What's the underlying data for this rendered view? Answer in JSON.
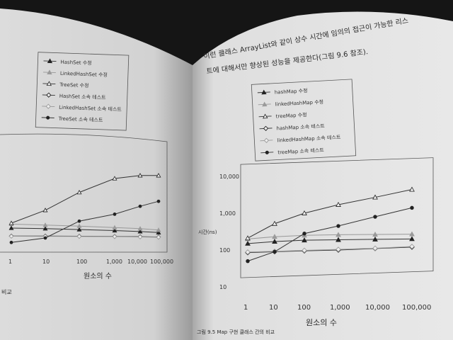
{
  "photo": {
    "subject": "open-book",
    "colors": {
      "background": "#151515",
      "paper_left": "#dcdcdc",
      "paper_right": "#e4e4e4",
      "ink": "#2a2a2a"
    }
  },
  "left_page": {
    "legend": [
      "HashSet 수정",
      "LinkedHashSet 수정",
      "TreeSet 수정",
      "HashSet 소속 테스트",
      "LinkedHashSet 소속 테스트",
      "TreeSet 소속 테스트"
    ],
    "x_ticks": [
      "1",
      "10",
      "100",
      "1,000",
      "10,000",
      "100,000"
    ],
    "x_label": "원소의 수",
    "footer_fragment": "비교"
  },
  "right_page": {
    "body_text": [
      "이런 클래스 ArrayList와 같이 상수 시간에 임의의 접근이 가능한 리스",
      "트에 대해서만 향상된 성능을 제공한다(그림 9.6 참조)."
    ],
    "legend": [
      "hashMap 수정",
      "linkedHashMap 수정",
      "treeMap 수정",
      "hashMap 소속 테스트",
      "linkedHashMap 소속 테스트",
      "treeMap 소속 테스트"
    ],
    "y_ticks": [
      "10,000",
      "1,000",
      "100",
      "10"
    ],
    "y_label": "시간(ns)",
    "x_ticks": [
      "1",
      "10",
      "100",
      "1,000",
      "10,000",
      "100,000"
    ],
    "x_label": "원소의 수",
    "caption": "그림 9.5 Map 구현 클래스 간의 비교"
  },
  "chart_data": [
    {
      "type": "line",
      "x": [
        1,
        10,
        100,
        1000,
        10000,
        100000
      ],
      "xscale": "log",
      "series": [
        {
          "name": "HashSet 수정",
          "marker": "filled-triangle",
          "values": [
            200,
            195,
            185,
            175,
            165,
            155
          ]
        },
        {
          "name": "LinkedHashSet 수정",
          "marker": "gray-triangle",
          "values": [
            240,
            230,
            220,
            205,
            195,
            180
          ]
        },
        {
          "name": "TreeSet 수정",
          "marker": "open-triangle",
          "values": [
            250,
            380,
            560,
            700,
            730,
            730
          ]
        },
        {
          "name": "HashSet 소속 테스트",
          "marker": "open-diamond",
          "values": [
            120,
            120,
            118,
            116,
            113,
            110
          ]
        },
        {
          "name": "LinkedHashSet 소속 테스트",
          "marker": "gray-diamond",
          "values": [
            118,
            117,
            116,
            114,
            111,
            108
          ]
        },
        {
          "name": "TreeSet 소속 테스트",
          "marker": "filled-circle",
          "values": [
            55,
            100,
            270,
            340,
            420,
            470
          ]
        }
      ]
    },
    {
      "type": "line",
      "x": [
        1,
        10,
        100,
        1000,
        10000,
        100000
      ],
      "xscale": "log",
      "yscale": "log",
      "ylim": [
        10,
        10000
      ],
      "series": [
        {
          "name": "hashMap 수정",
          "marker": "filled-triangle",
          "values": [
            150,
            170,
            185,
            190,
            195,
            200
          ]
        },
        {
          "name": "linkedHashMap 수정",
          "marker": "gray-triangle",
          "values": [
            200,
            230,
            250,
            260,
            265,
            270
          ]
        },
        {
          "name": "treeMap 수정",
          "marker": "open-triangle",
          "values": [
            210,
            520,
            1000,
            1700,
            2700,
            4400
          ]
        },
        {
          "name": "hashMap 소속 테스트",
          "marker": "open-diamond",
          "values": [
            85,
            90,
            95,
            100,
            110,
            120
          ]
        },
        {
          "name": "linkedHashMap 소속 테스트",
          "marker": "gray-diamond",
          "values": [
            88,
            92,
            98,
            104,
            112,
            125
          ]
        },
        {
          "name": "treeMap 소속 테스트",
          "marker": "filled-circle",
          "values": [
            50,
            90,
            280,
            450,
            800,
            1400
          ]
        }
      ]
    }
  ]
}
